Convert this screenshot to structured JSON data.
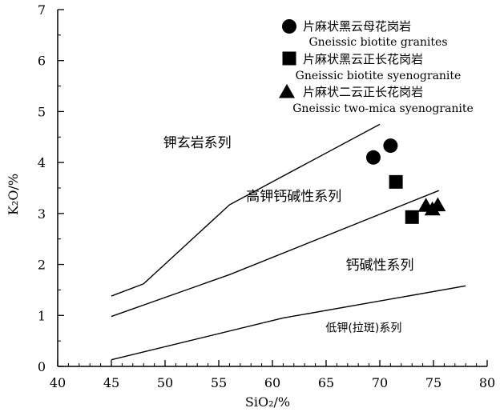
{
  "chart_data": {
    "type": "scatter",
    "xlabel": "SiO₂/%",
    "ylabel": "K₂O/%",
    "xlim": [
      40,
      80
    ],
    "ylim": [
      0,
      7
    ],
    "xticks": [
      "40",
      "45",
      "50",
      "55",
      "60",
      "65",
      "70",
      "75",
      "80"
    ],
    "yticks": [
      "0",
      "1",
      "2",
      "3",
      "4",
      "5",
      "6",
      "7"
    ],
    "boundaries": [
      {
        "points": [
          [
            45,
            1.38
          ],
          [
            48,
            1.62
          ],
          [
            56,
            3.17
          ],
          [
            70,
            4.75
          ]
        ]
      },
      {
        "points": [
          [
            45,
            0.98
          ],
          [
            56,
            1.8
          ],
          [
            75.5,
            3.45
          ]
        ]
      },
      {
        "points": [
          [
            45,
            0.13
          ],
          [
            61,
            0.95
          ],
          [
            78,
            1.58
          ]
        ]
      }
    ],
    "regions": [
      {
        "label": "钾玄岩系列",
        "x": 53,
        "y": 4.3
      },
      {
        "label": "高钾钙碱性系列",
        "x": 62,
        "y": 3.25
      },
      {
        "label": "钙碱性系列",
        "x": 70,
        "y": 1.9
      },
      {
        "label": "低钾(拉斑)系列",
        "x": 68.5,
        "y": 0.68
      }
    ],
    "series": [
      {
        "name_cn": "片麻状黑云母花岗岩",
        "name_en": "Gneissic biotite granites",
        "marker": "circle",
        "points": [
          [
            69.4,
            4.1
          ],
          [
            71.0,
            4.33
          ]
        ]
      },
      {
        "name_cn": "片麻状黑云正长花岗岩",
        "name_en": "Gneissic biotite syenogranite",
        "marker": "square",
        "points": [
          [
            71.5,
            3.62
          ],
          [
            73.0,
            2.93
          ]
        ]
      },
      {
        "name_cn": "片麻状二云正长花岗岩",
        "name_en": "Gneissic two-mica syenogranite",
        "marker": "triangle",
        "points": [
          [
            74.3,
            3.15
          ],
          [
            74.9,
            3.08
          ],
          [
            75.4,
            3.16
          ]
        ]
      }
    ],
    "legend_position": "top-right",
    "grid": false
  }
}
